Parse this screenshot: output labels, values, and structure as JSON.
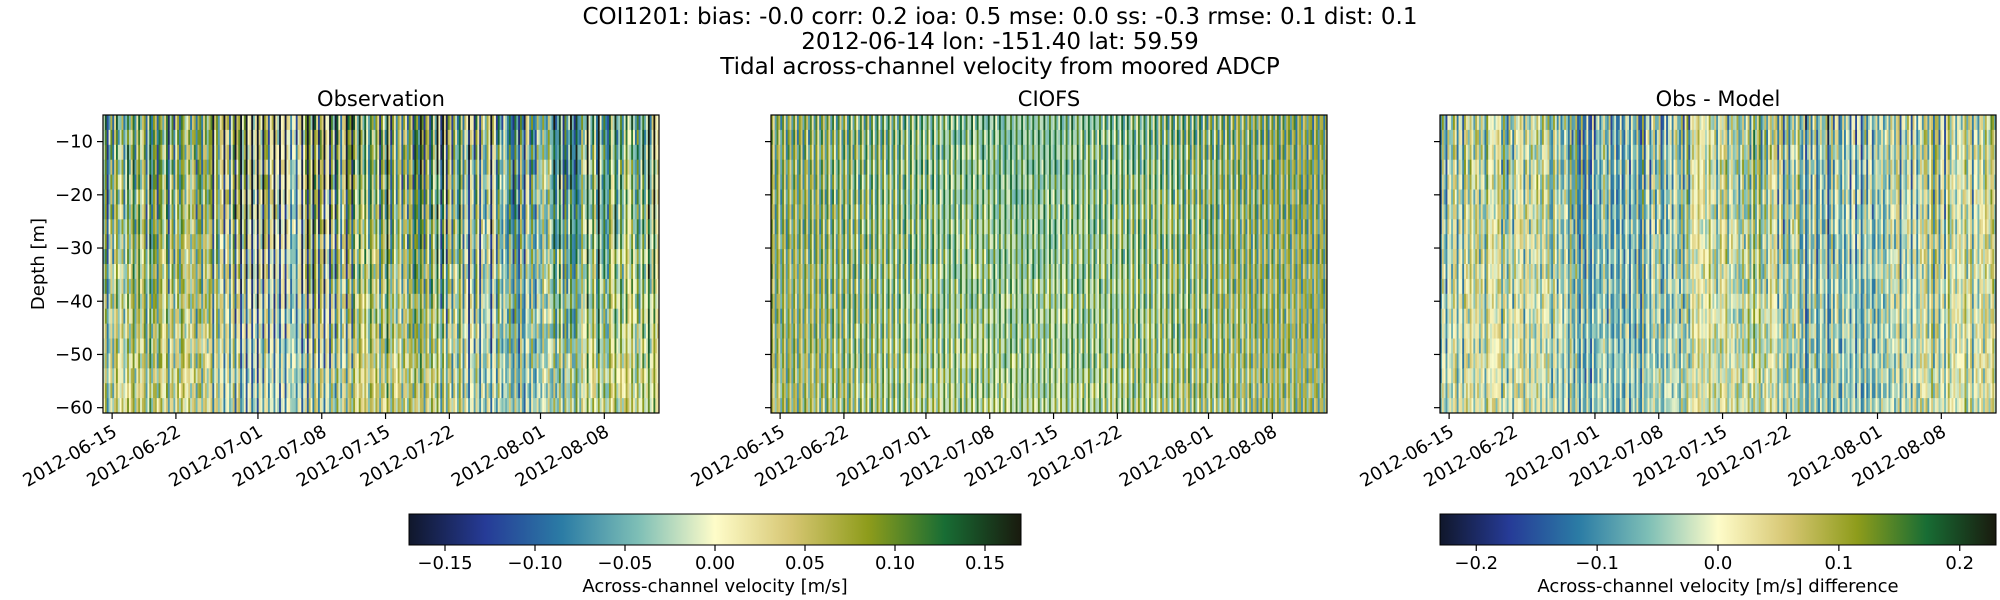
{
  "chart_data": {
    "type": "heatmap",
    "suptitle_lines": [
      "COI1201: bias: -0.0  corr: 0.2  ioa: 0.5  mse: 0.0  ss: -0.3  rmse: 0.1  dist: 0.1",
      "2012-06-14 lon: -151.40 lat: 59.59",
      "Tidal across-channel velocity from moored ADCP"
    ],
    "ylabel": "Depth [m]",
    "ylim": [
      -61,
      -5
    ],
    "yticks": [
      -10,
      -20,
      -30,
      -40,
      -50,
      -60
    ],
    "ytick_labels": [
      "−10",
      "−20",
      "−30",
      "−40",
      "−50",
      "−60"
    ],
    "time_range": [
      "2012-06-14",
      "2012-08-14"
    ],
    "xtick_labels": [
      "2012-06-15",
      "2012-06-22",
      "2012-07-01",
      "2012-07-08",
      "2012-07-15",
      "2012-07-22",
      "2012-08-01",
      "2012-08-08"
    ],
    "xtick_days": [
      1,
      8,
      17,
      24,
      31,
      38,
      48,
      55
    ],
    "total_days": 61,
    "panels": [
      {
        "title": "Observation",
        "variable": "observed across-channel velocity",
        "vmin": -0.17,
        "vmax": 0.17
      },
      {
        "title": "CIOFS",
        "variable": "modeled across-channel velocity",
        "vmin": -0.17,
        "vmax": 0.17
      },
      {
        "title": "Obs - Model",
        "variable": "velocity difference",
        "vmin": -0.23,
        "vmax": 0.23
      }
    ],
    "colorbars": [
      {
        "label": "Across-channel velocity [m/s]",
        "vmin": -0.17,
        "vmax": 0.17,
        "tick_values": [
          -0.15,
          -0.1,
          -0.05,
          0.0,
          0.05,
          0.1,
          0.15
        ],
        "tick_labels": [
          "−0.15",
          "−0.10",
          "−0.05",
          "0.00",
          "0.05",
          "0.10",
          "0.15"
        ]
      },
      {
        "label": "Across-channel velocity [m/s] difference",
        "vmin": -0.23,
        "vmax": 0.23,
        "tick_values": [
          -0.2,
          -0.1,
          0.0,
          0.1,
          0.2
        ],
        "tick_labels": [
          "−0.2",
          "−0.1",
          "0.0",
          "0.1",
          "0.2"
        ]
      }
    ],
    "colormap": "delta",
    "colormap_stops": [
      "#10172b",
      "#263b97",
      "#2b7ca5",
      "#7ebfb6",
      "#fefcc9",
      "#d6c672",
      "#8e9c1b",
      "#186d34",
      "#191a0e"
    ]
  }
}
